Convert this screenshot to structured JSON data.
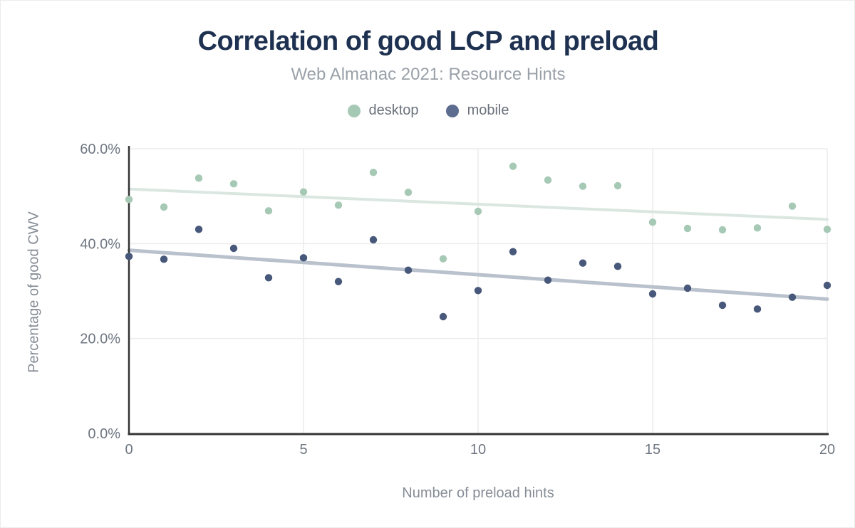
{
  "header": {
    "title": "Correlation of good LCP and preload",
    "subtitle": "Web Almanac 2021: Resource Hints"
  },
  "chart_data": {
    "type": "scatter",
    "title": "Correlation of good LCP and preload",
    "subtitle": "Web Almanac 2021: Resource Hints",
    "xlabel": "Number of preload hints",
    "ylabel": "Percentage of good CWV",
    "xlim": [
      0,
      20
    ],
    "ylim": [
      0,
      60
    ],
    "grid": true,
    "legend_position": "top",
    "xticks": [
      0,
      5,
      10,
      15,
      20
    ],
    "xtick_labels": [
      "0",
      "5",
      "10",
      "15",
      "20"
    ],
    "yticks": [
      0,
      20,
      40,
      60
    ],
    "ytick_labels": [
      "0.0%",
      "20.0%",
      "40.0%",
      "60.0%"
    ],
    "x": [
      0,
      1,
      2,
      3,
      4,
      5,
      6,
      7,
      8,
      9,
      10,
      11,
      12,
      13,
      14,
      15,
      16,
      17,
      18,
      19,
      20
    ],
    "series": [
      {
        "name": "desktop",
        "point_color": "#a6c9b5",
        "legend_color": "#a6c9b5",
        "values": [
          49.3,
          47.7,
          53.8,
          52.6,
          46.9,
          50.9,
          48.1,
          55.0,
          50.8,
          36.8,
          46.8,
          56.3,
          53.4,
          52.1,
          52.2,
          44.5,
          43.2,
          42.9,
          43.3,
          47.9,
          43.0
        ],
        "trend": {
          "x0": 0,
          "y0": 51.5,
          "x1": 20,
          "y1": 45.1,
          "color": "#dae7e0"
        }
      },
      {
        "name": "mobile",
        "point_color": "#47587a",
        "legend_color": "#5d6d90",
        "values": [
          37.3,
          36.7,
          43.0,
          39.0,
          32.8,
          37.0,
          32.0,
          40.8,
          34.4,
          24.6,
          30.1,
          38.3,
          32.3,
          35.9,
          35.2,
          29.4,
          30.6,
          27.0,
          26.2,
          28.7,
          31.2
        ],
        "trend": {
          "x0": 0,
          "y0": 38.6,
          "x1": 20,
          "y1": 28.3,
          "color": "#b9c1cd"
        }
      }
    ]
  },
  "colors": {
    "title": "#1e3150",
    "subtitle": "#9aa1a9",
    "tick_text": "#6e7681",
    "axis_title": "#868d96",
    "grid": "#ececec",
    "axis_line": "#333333",
    "background": "#ffffff"
  }
}
